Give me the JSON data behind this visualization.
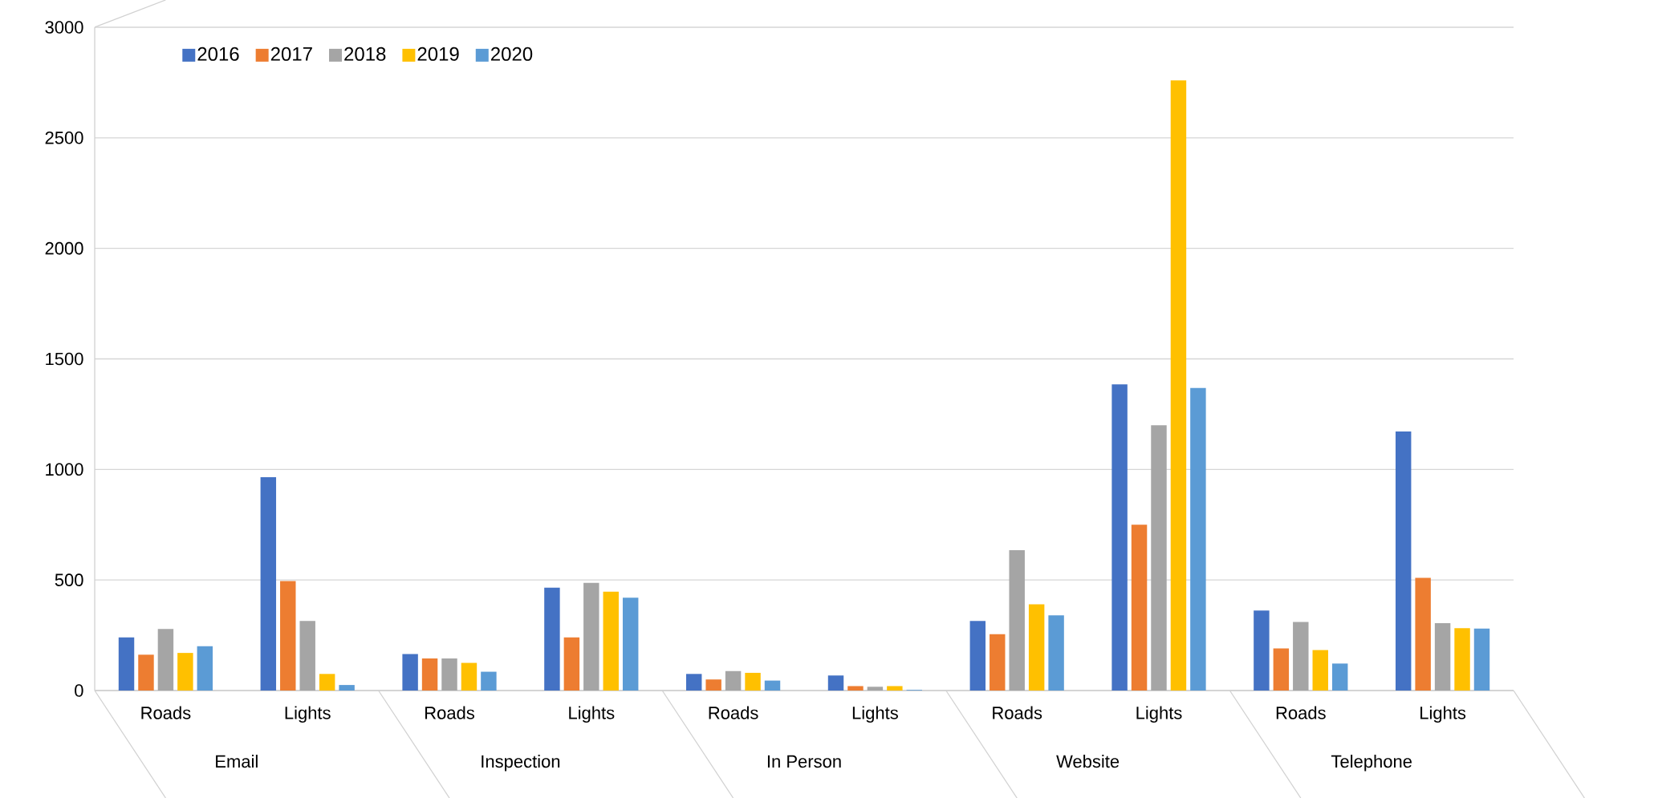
{
  "chart_data": {
    "type": "bar",
    "categories": [
      "Roads",
      "Lights",
      "Roads",
      "Lights",
      "Roads",
      "Lights",
      "Roads",
      "Lights",
      "Roads",
      "Lights"
    ],
    "annotations": [
      "Email",
      "Inspection",
      "In Person",
      "Website",
      "Telephone"
    ],
    "series": [
      {
        "name": "2016",
        "color": "#4472c4",
        "values": [
          240,
          965,
          165,
          465,
          75,
          68,
          315,
          1385,
          362,
          1172
        ]
      },
      {
        "name": "2017",
        "color": "#ed7d31",
        "values": [
          162,
          495,
          145,
          240,
          50,
          20,
          255,
          750,
          190,
          510
        ]
      },
      {
        "name": "2018",
        "color": "#a5a5a5",
        "values": [
          278,
          315,
          145,
          487,
          88,
          17,
          635,
          1200,
          310,
          305
        ]
      },
      {
        "name": "2019",
        "color": "#ffc000",
        "values": [
          170,
          75,
          125,
          447,
          80,
          20,
          390,
          2760,
          183,
          282
        ]
      },
      {
        "name": "2020",
        "color": "#5b9bd5",
        "values": [
          200,
          25,
          85,
          420,
          45,
          3,
          340,
          1368,
          122,
          280
        ]
      }
    ],
    "ylim": [
      0,
      3000
    ],
    "yticks": [
      0,
      500,
      1000,
      1500,
      2000,
      2500,
      3000
    ],
    "grid": "y",
    "legend": "top left"
  }
}
